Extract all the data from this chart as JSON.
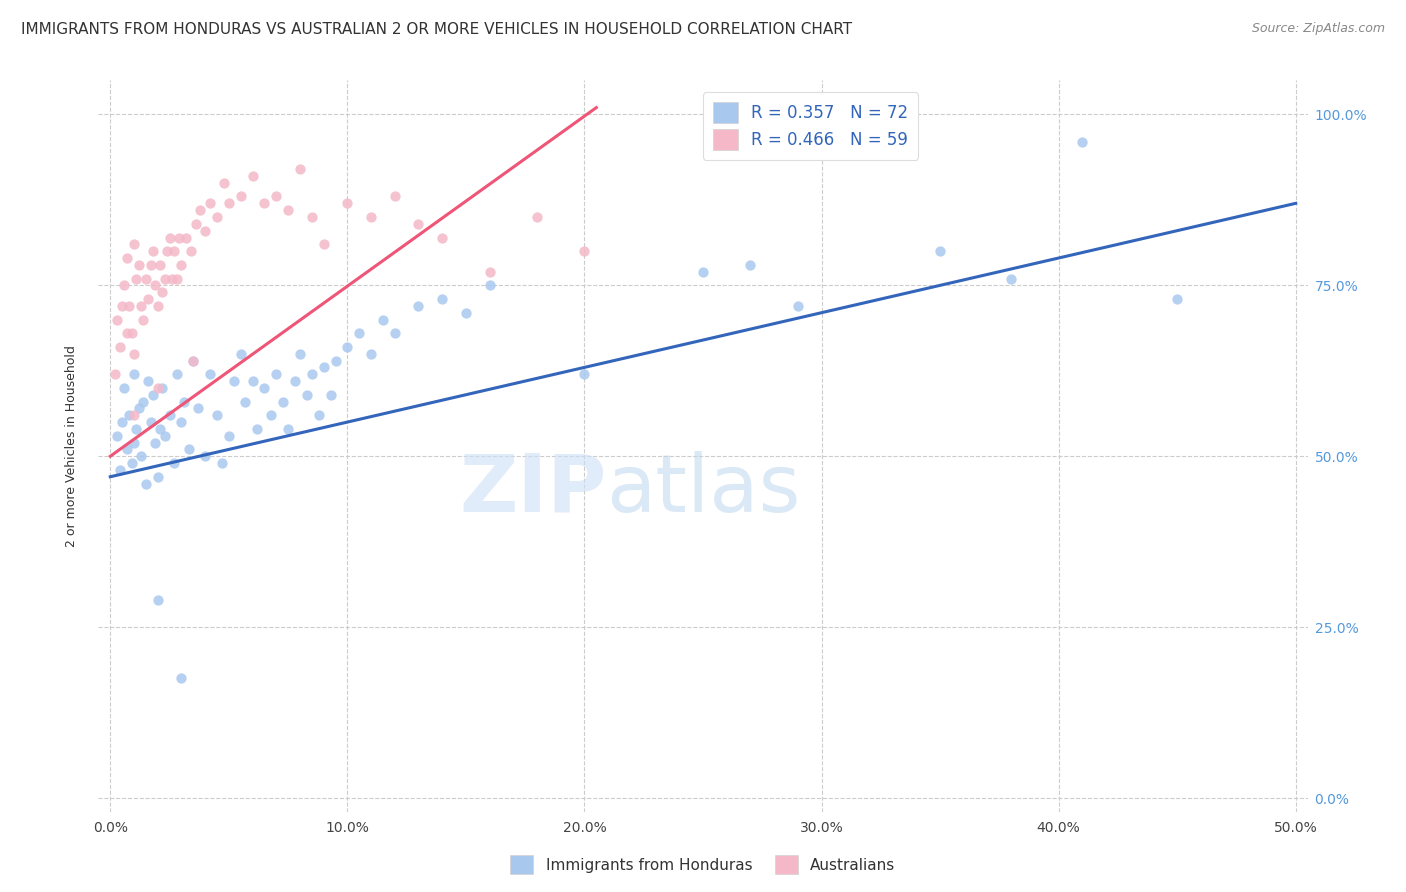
{
  "title": "IMMIGRANTS FROM HONDURAS VS AUSTRALIAN 2 OR MORE VEHICLES IN HOUSEHOLD CORRELATION CHART",
  "source": "Source: ZipAtlas.com",
  "xlabel_ticks": [
    "0.0%",
    "10.0%",
    "20.0%",
    "30.0%",
    "40.0%",
    "50.0%"
  ],
  "xlabel_vals": [
    0.0,
    0.1,
    0.2,
    0.3,
    0.4,
    0.5
  ],
  "ylabel_ticks": [
    "0.0%",
    "25.0%",
    "50.0%",
    "75.0%",
    "100.0%"
  ],
  "ylabel_vals": [
    0.0,
    0.25,
    0.5,
    0.75,
    1.0
  ],
  "ylabel_label": "2 or more Vehicles in Household",
  "xlim": [
    -0.005,
    0.505
  ],
  "ylim": [
    -0.02,
    1.05
  ],
  "legend_label1": "R = 0.357   N = 72",
  "legend_label2": "R = 0.466   N = 59",
  "legend_entry1": "Immigrants from Honduras",
  "legend_entry2": "Australians",
  "blue_color": "#a8c8ee",
  "pink_color": "#f4b8c8",
  "blue_line_color": "#3366bb",
  "pink_line_color": "#ee5577",
  "blue_scatter_x": [
    0.003,
    0.004,
    0.005,
    0.006,
    0.007,
    0.008,
    0.009,
    0.01,
    0.01,
    0.011,
    0.012,
    0.013,
    0.014,
    0.015,
    0.016,
    0.017,
    0.018,
    0.019,
    0.02,
    0.021,
    0.022,
    0.023,
    0.025,
    0.027,
    0.028,
    0.03,
    0.031,
    0.033,
    0.035,
    0.037,
    0.04,
    0.042,
    0.045,
    0.047,
    0.05,
    0.052,
    0.055,
    0.057,
    0.06,
    0.062,
    0.065,
    0.068,
    0.07,
    0.073,
    0.075,
    0.078,
    0.08,
    0.083,
    0.085,
    0.088,
    0.09,
    0.093,
    0.095,
    0.1,
    0.105,
    0.11,
    0.115,
    0.12,
    0.13,
    0.14,
    0.15,
    0.16,
    0.2,
    0.25,
    0.27,
    0.29,
    0.35,
    0.38,
    0.41,
    0.45,
    0.02,
    0.03
  ],
  "blue_scatter_y": [
    0.53,
    0.48,
    0.55,
    0.6,
    0.51,
    0.56,
    0.49,
    0.52,
    0.62,
    0.54,
    0.57,
    0.5,
    0.58,
    0.46,
    0.61,
    0.55,
    0.59,
    0.52,
    0.47,
    0.54,
    0.6,
    0.53,
    0.56,
    0.49,
    0.62,
    0.55,
    0.58,
    0.51,
    0.64,
    0.57,
    0.5,
    0.62,
    0.56,
    0.49,
    0.53,
    0.61,
    0.65,
    0.58,
    0.61,
    0.54,
    0.6,
    0.56,
    0.62,
    0.58,
    0.54,
    0.61,
    0.65,
    0.59,
    0.62,
    0.56,
    0.63,
    0.59,
    0.64,
    0.66,
    0.68,
    0.65,
    0.7,
    0.68,
    0.72,
    0.73,
    0.71,
    0.75,
    0.62,
    0.77,
    0.78,
    0.72,
    0.8,
    0.76,
    0.96,
    0.73,
    0.29,
    0.175
  ],
  "pink_scatter_x": [
    0.002,
    0.003,
    0.004,
    0.005,
    0.006,
    0.007,
    0.007,
    0.008,
    0.009,
    0.01,
    0.01,
    0.011,
    0.012,
    0.013,
    0.014,
    0.015,
    0.016,
    0.017,
    0.018,
    0.019,
    0.02,
    0.021,
    0.022,
    0.023,
    0.024,
    0.025,
    0.026,
    0.027,
    0.028,
    0.029,
    0.03,
    0.032,
    0.034,
    0.036,
    0.038,
    0.04,
    0.042,
    0.045,
    0.048,
    0.05,
    0.055,
    0.06,
    0.065,
    0.07,
    0.075,
    0.08,
    0.085,
    0.09,
    0.1,
    0.11,
    0.12,
    0.13,
    0.14,
    0.16,
    0.18,
    0.2,
    0.035,
    0.02,
    0.01
  ],
  "pink_scatter_y": [
    0.62,
    0.7,
    0.66,
    0.72,
    0.75,
    0.68,
    0.79,
    0.72,
    0.68,
    0.81,
    0.65,
    0.76,
    0.78,
    0.72,
    0.7,
    0.76,
    0.73,
    0.78,
    0.8,
    0.75,
    0.72,
    0.78,
    0.74,
    0.76,
    0.8,
    0.82,
    0.76,
    0.8,
    0.76,
    0.82,
    0.78,
    0.82,
    0.8,
    0.84,
    0.86,
    0.83,
    0.87,
    0.85,
    0.9,
    0.87,
    0.88,
    0.91,
    0.87,
    0.88,
    0.86,
    0.92,
    0.85,
    0.81,
    0.87,
    0.85,
    0.88,
    0.84,
    0.82,
    0.77,
    0.85,
    0.8,
    0.64,
    0.6,
    0.56
  ],
  "blue_line_x": [
    0.0,
    0.5
  ],
  "blue_line_y": [
    0.47,
    0.87
  ],
  "pink_line_x": [
    0.0,
    0.205
  ],
  "pink_line_y": [
    0.5,
    1.01
  ],
  "watermark_zip": "ZIP",
  "watermark_atlas": "atlas",
  "background_color": "#ffffff",
  "grid_color": "#cccccc",
  "tick_color_y": "#5599dd",
  "tick_color_x": "#444444",
  "title_fontsize": 11,
  "source_fontsize": 9,
  "axis_label_fontsize": 9,
  "scatter_size": 55
}
